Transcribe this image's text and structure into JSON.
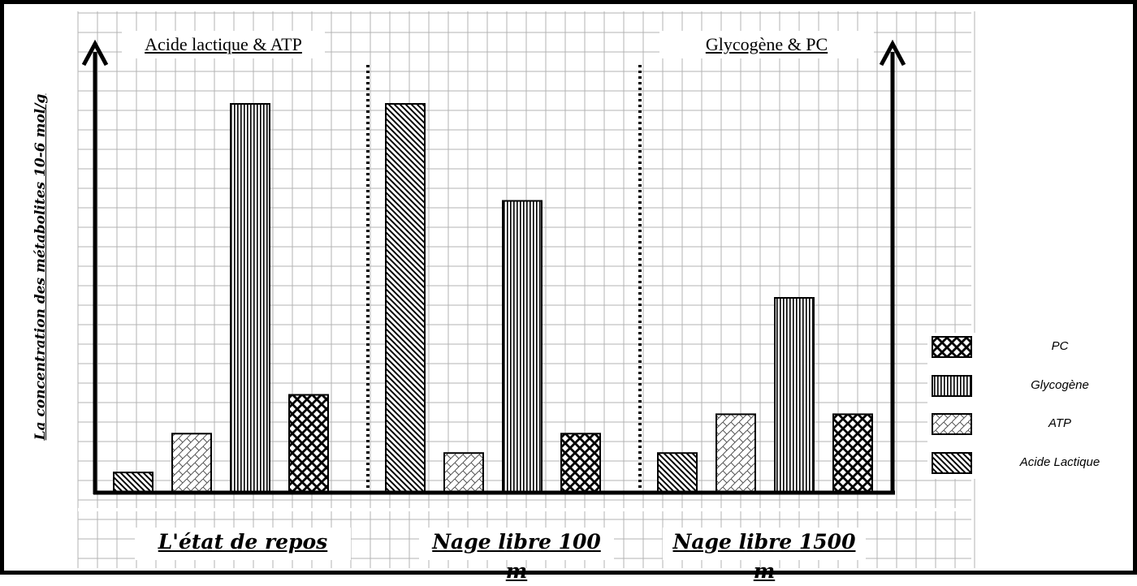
{
  "chart_data": {
    "type": "bar",
    "title_left": "Acide lactique & ATP",
    "title_right": "Glycogène & PC",
    "ylabel": "La concentration des métabolites 10-6 mol/g",
    "categories": [
      "L'état de repos",
      "Nage libre 100 m",
      "Nage libre 1500 m"
    ],
    "series": [
      {
        "name": "Acide Lactique",
        "pattern": "diag",
        "values": [
          1,
          20,
          2
        ]
      },
      {
        "name": "ATP",
        "pattern": "brick",
        "values": [
          3,
          2,
          4
        ]
      },
      {
        "name": "Glycogène",
        "pattern": "vert",
        "values": [
          20,
          15,
          10
        ]
      },
      {
        "name": "PC",
        "pattern": "checker",
        "values": [
          5,
          3,
          4
        ]
      }
    ],
    "legend_order": [
      "PC",
      "Glycogène",
      "ATP",
      "Acide Lactique"
    ],
    "ylim": [
      0,
      22
    ],
    "grid": true,
    "legend_position": "right"
  }
}
